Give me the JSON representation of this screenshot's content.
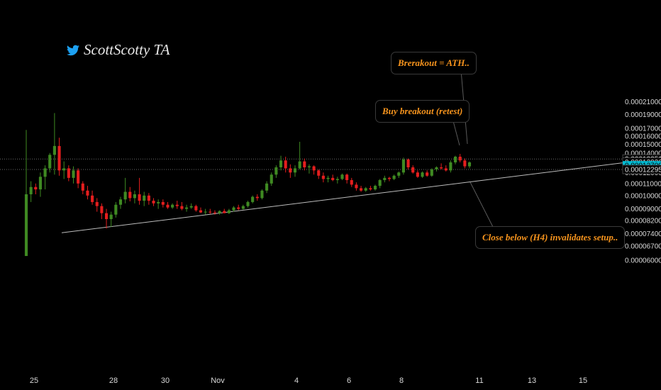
{
  "brand": {
    "name": "ScottScotty TA",
    "icon": "twitter-bird-icon",
    "color": "#1da1f2"
  },
  "annotations": {
    "ath": "Brerakout = ATH..",
    "buy": "Buy breakout (retest)",
    "invalidate": "Close below (H4) invalidates setup.."
  },
  "chart_data": {
    "type": "candlestick",
    "price_axis_labels": [
      "0.00021000",
      "0.00019000",
      "0.00017000",
      "0.00016000",
      "0.00015000",
      "0.00014000",
      "0.00012000",
      "0.00011000",
      "0.00010000",
      "0.00009000",
      "0.00008200",
      "0.00007400",
      "0.00006700",
      "0.00006000"
    ],
    "price_axis_values": [
      0.00021,
      0.00019,
      0.00017,
      0.00016,
      0.00015,
      0.00014,
      0.00012,
      0.00011,
      0.0001,
      9e-05,
      8.2e-05,
      7.4e-05,
      6.7e-05,
      6e-05
    ],
    "date_axis_labels": [
      "25",
      "28",
      "30",
      "Nov",
      "4",
      "6",
      "8",
      "11",
      "13",
      "15"
    ],
    "price_tags": [
      {
        "label": "0.00013351",
        "value": 0.00013351,
        "highlight": false
      },
      {
        "label": "0.00013036",
        "value": 0.00013036,
        "highlight": false
      },
      {
        "label": "0.00012700",
        "value": 0.000127,
        "highlight": true
      },
      {
        "label": "0.00012295",
        "value": 0.00012295,
        "highlight": false
      }
    ],
    "horizontal_levels": [
      0.00013351,
      0.00012295
    ],
    "trendline": {
      "start": {
        "date": "Oct 26",
        "price": 7.45e-05
      },
      "end": {
        "date": "Nov 16",
        "price": 0.0001335
      }
    },
    "colors": {
      "up": "#3f8a22",
      "down": "#e51e1e",
      "highlight": "#00bcd4",
      "annotation": "#f7941d"
    },
    "candles": [
      {
        "o": 6.2e-05,
        "h": 0.000168,
        "l": 6.25e-05,
        "c": 0.000101
      },
      {
        "o": 0.000101,
        "h": 0.000112,
        "l": 9.5e-05,
        "c": 0.000107
      },
      {
        "o": 0.000107,
        "h": 0.00011,
        "l": 0.000101,
        "c": 0.000105
      },
      {
        "o": 0.000105,
        "h": 0.00012,
        "l": 9.9e-05,
        "c": 0.000116
      },
      {
        "o": 0.000116,
        "h": 0.000127,
        "l": 0.000105,
        "c": 0.000124
      },
      {
        "o": 0.000124,
        "h": 0.00014,
        "l": 0.00012,
        "c": 0.000138
      },
      {
        "o": 0.000138,
        "h": 0.000192,
        "l": 0.000118,
        "c": 0.000148
      },
      {
        "o": 0.000148,
        "h": 0.000158,
        "l": 0.000117,
        "c": 0.000122
      },
      {
        "o": 0.000122,
        "h": 0.000131,
        "l": 0.000114,
        "c": 0.000124
      },
      {
        "o": 0.000124,
        "h": 0.000127,
        "l": 0.000112,
        "c": 0.000115
      },
      {
        "o": 0.000115,
        "h": 0.000126,
        "l": 0.00011,
        "c": 0.000122
      },
      {
        "o": 0.000122,
        "h": 0.000124,
        "l": 0.000106,
        "c": 0.00011
      },
      {
        "o": 0.00011,
        "h": 0.000112,
        "l": 0.000101,
        "c": 0.000104
      },
      {
        "o": 0.000104,
        "h": 0.000108,
        "l": 9.7e-05,
        "c": 0.0001
      },
      {
        "o": 0.0001,
        "h": 0.000104,
        "l": 9.3e-05,
        "c": 9.5e-05
      },
      {
        "o": 9.5e-05,
        "h": 9.8e-05,
        "l": 8.8e-05,
        "c": 9.2e-05
      },
      {
        "o": 9.2e-05,
        "h": 9.4e-05,
        "l": 8.3e-05,
        "c": 8.7e-05
      },
      {
        "o": 8.7e-05,
        "h": 9e-05,
        "l": 7.7e-05,
        "c": 8.3e-05
      },
      {
        "o": 8.3e-05,
        "h": 8.8e-05,
        "l": 7.8e-05,
        "c": 8.6e-05
      },
      {
        "o": 8.6e-05,
        "h": 9.5e-05,
        "l": 8.4e-05,
        "c": 9.3e-05
      },
      {
        "o": 9.3e-05,
        "h": 9.9e-05,
        "l": 9e-05,
        "c": 9.7e-05
      },
      {
        "o": 9.7e-05,
        "h": 0.000115,
        "l": 9.4e-05,
        "c": 0.000103
      },
      {
        "o": 0.000103,
        "h": 0.000107,
        "l": 9.55e-05,
        "c": 9.8e-05
      },
      {
        "o": 9.8e-05,
        "h": 0.000104,
        "l": 9.4e-05,
        "c": 0.000101
      },
      {
        "o": 0.000101,
        "h": 0.000115,
        "l": 9.3e-05,
        "c": 9.6e-05
      },
      {
        "o": 9.6e-05,
        "h": 0.000103,
        "l": 9.2e-05,
        "c": 0.0001
      },
      {
        "o": 0.0001,
        "h": 0.000102,
        "l": 9.3e-05,
        "c": 9.6e-05
      },
      {
        "o": 9.6e-05,
        "h": 9.8e-05,
        "l": 9.2e-05,
        "c": 9.4e-05
      },
      {
        "o": 9.4e-05,
        "h": 9.7e-05,
        "l": 9e-05,
        "c": 9.5e-05
      },
      {
        "o": 9.5e-05,
        "h": 9.7e-05,
        "l": 9.1e-05,
        "c": 9.3e-05
      },
      {
        "o": 9.3e-05,
        "h": 9.5e-05,
        "l": 9e-05,
        "c": 9.1e-05
      },
      {
        "o": 9.1e-05,
        "h": 9.4e-05,
        "l": 9e-05,
        "c": 9.3e-05
      },
      {
        "o": 9.3e-05,
        "h": 9.6e-05,
        "l": 9e-05,
        "c": 9.2e-05
      },
      {
        "o": 9.2e-05,
        "h": 9.5e-05,
        "l": 8.9e-05,
        "c": 9e-05
      },
      {
        "o": 9e-05,
        "h": 9.3e-05,
        "l": 8.8e-05,
        "c": 9.1e-05
      },
      {
        "o": 9.1e-05,
        "h": 9.4e-05,
        "l": 9e-05,
        "c": 9.2e-05
      },
      {
        "o": 9.2e-05,
        "h": 9.3e-05,
        "l": 8.8e-05,
        "c": 8.9e-05
      },
      {
        "o": 8.9e-05,
        "h": 9.1e-05,
        "l": 8.7e-05,
        "c": 8.75e-05
      },
      {
        "o": 8.75e-05,
        "h": 9e-05,
        "l": 8.6e-05,
        "c": 8.8e-05
      },
      {
        "o": 8.8e-05,
        "h": 9e-05,
        "l": 8.65e-05,
        "c": 8.75e-05
      },
      {
        "o": 8.75e-05,
        "h": 8.9e-05,
        "l": 8.6e-05,
        "c": 8.7e-05
      },
      {
        "o": 8.7e-05,
        "h": 8.9e-05,
        "l": 8.6e-05,
        "c": 8.85e-05
      },
      {
        "o": 8.85e-05,
        "h": 9e-05,
        "l": 8.7e-05,
        "c": 8.7e-05
      },
      {
        "o": 8.7e-05,
        "h": 9e-05,
        "l": 8.65e-05,
        "c": 8.9e-05
      },
      {
        "o": 8.9e-05,
        "h": 9.2e-05,
        "l": 8.8e-05,
        "c": 9.1e-05
      },
      {
        "o": 9.1e-05,
        "h": 9.3e-05,
        "l": 8.9e-05,
        "c": 9e-05
      },
      {
        "o": 9e-05,
        "h": 9.3e-05,
        "l": 8.95e-05,
        "c": 9.2e-05
      },
      {
        "o": 9.2e-05,
        "h": 9.6e-05,
        "l": 9.1e-05,
        "c": 9.5e-05
      },
      {
        "o": 9.5e-05,
        "h": 0.0001,
        "l": 9.4e-05,
        "c": 9.9e-05
      },
      {
        "o": 9.9e-05,
        "h": 0.000101,
        "l": 9.6e-05,
        "c": 9.8e-05
      },
      {
        "o": 9.8e-05,
        "h": 0.000105,
        "l": 9.7e-05,
        "c": 0.000104
      },
      {
        "o": 0.000104,
        "h": 0.000112,
        "l": 0.000102,
        "c": 0.00011
      },
      {
        "o": 0.00011,
        "h": 0.00012,
        "l": 0.000108,
        "c": 0.000118
      },
      {
        "o": 0.000118,
        "h": 0.000127,
        "l": 0.000115,
        "c": 0.000125
      },
      {
        "o": 0.000125,
        "h": 0.000137,
        "l": 0.000122,
        "c": 0.000132
      },
      {
        "o": 0.000132,
        "h": 0.000136,
        "l": 0.00012,
        "c": 0.000124
      },
      {
        "o": 0.000124,
        "h": 0.000128,
        "l": 0.000115,
        "c": 0.00012
      },
      {
        "o": 0.00012,
        "h": 0.000127,
        "l": 0.000116,
        "c": 0.000124
      },
      {
        "o": 0.000124,
        "h": 0.000153,
        "l": 0.000123,
        "c": 0.000131
      },
      {
        "o": 0.000131,
        "h": 0.000134,
        "l": 0.000122,
        "c": 0.000125
      },
      {
        "o": 0.000125,
        "h": 0.000128,
        "l": 0.000119,
        "c": 0.000126
      },
      {
        "o": 0.000126,
        "h": 0.000127,
        "l": 0.000118,
        "c": 0.000122
      },
      {
        "o": 0.000122,
        "h": 0.000123,
        "l": 0.000114,
        "c": 0.000117
      },
      {
        "o": 0.000117,
        "h": 0.00012,
        "l": 0.000111,
        "c": 0.000114
      },
      {
        "o": 0.000114,
        "h": 0.000117,
        "l": 0.000111,
        "c": 0.000115
      },
      {
        "o": 0.000115,
        "h": 0.000118,
        "l": 0.000112,
        "c": 0.000113
      },
      {
        "o": 0.000113,
        "h": 0.000116,
        "l": 0.00011,
        "c": 0.000114
      },
      {
        "o": 0.000114,
        "h": 0.000119,
        "l": 0.000113,
        "c": 0.000118
      },
      {
        "o": 0.000118,
        "h": 0.000119,
        "l": 0.00011,
        "c": 0.000113
      },
      {
        "o": 0.000113,
        "h": 0.000115,
        "l": 0.000107,
        "c": 0.000109
      },
      {
        "o": 0.000109,
        "h": 0.000111,
        "l": 0.000104,
        "c": 0.000106
      },
      {
        "o": 0.000106,
        "h": 0.000108,
        "l": 0.000103,
        "c": 0.000104
      },
      {
        "o": 0.000104,
        "h": 0.000107,
        "l": 0.000103,
        "c": 0.000106
      },
      {
        "o": 0.000106,
        "h": 0.000108,
        "l": 0.000104,
        "c": 0.000105
      },
      {
        "o": 0.000105,
        "h": 0.000109,
        "l": 0.000104,
        "c": 0.000108
      },
      {
        "o": 0.000108,
        "h": 0.000114,
        "l": 0.000106,
        "c": 0.000113
      },
      {
        "o": 0.000113,
        "h": 0.000117,
        "l": 0.000111,
        "c": 0.000115
      },
      {
        "o": 0.000115,
        "h": 0.000116,
        "l": 0.000112,
        "c": 0.000114
      },
      {
        "o": 0.000114,
        "h": 0.000118,
        "l": 0.000113,
        "c": 0.000117
      },
      {
        "o": 0.000117,
        "h": 0.000121,
        "l": 0.000115,
        "c": 0.00012
      },
      {
        "o": 0.00012,
        "h": 0.000135,
        "l": 0.000118,
        "c": 0.000133
      },
      {
        "o": 0.000133,
        "h": 0.000134,
        "l": 0.000123,
        "c": 0.000125
      },
      {
        "o": 0.000125,
        "h": 0.000127,
        "l": 0.000119,
        "c": 0.00012
      },
      {
        "o": 0.00012,
        "h": 0.000122,
        "l": 0.000115,
        "c": 0.000116
      },
      {
        "o": 0.000116,
        "h": 0.000121,
        "l": 0.000115,
        "c": 0.00012
      },
      {
        "o": 0.00012,
        "h": 0.000122,
        "l": 0.000116,
        "c": 0.000117
      },
      {
        "o": 0.000117,
        "h": 0.000124,
        "l": 0.000116,
        "c": 0.000123
      },
      {
        "o": 0.000123,
        "h": 0.000126,
        "l": 0.000121,
        "c": 0.000125
      },
      {
        "o": 0.000125,
        "h": 0.000129,
        "l": 0.000123,
        "c": 0.000124
      },
      {
        "o": 0.000124,
        "h": 0.000127,
        "l": 0.000121,
        "c": 0.000122
      },
      {
        "o": 0.000122,
        "h": 0.000132,
        "l": 0.00012,
        "c": 0.00013
      },
      {
        "o": 0.00013,
        "h": 0.000137,
        "l": 0.000128,
        "c": 0.000136
      },
      {
        "o": 0.000136,
        "h": 0.000139,
        "l": 0.00013,
        "c": 0.000132
      },
      {
        "o": 0.000132,
        "h": 0.000134,
        "l": 0.000124,
        "c": 0.000126
      },
      {
        "o": 0.000126,
        "h": 0.000131,
        "l": 0.000124,
        "c": 0.00013
      }
    ]
  }
}
